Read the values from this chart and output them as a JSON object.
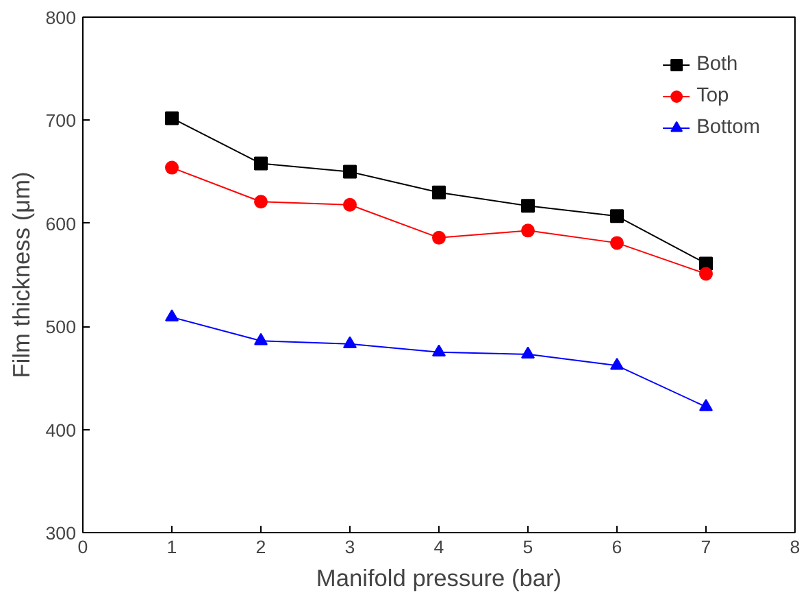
{
  "chart_data": {
    "type": "line",
    "xlabel": "Manifold pressure (bar)",
    "ylabel": "Film thickness (μm)",
    "x": [
      1,
      2,
      3,
      4,
      5,
      6,
      7
    ],
    "series": [
      {
        "name": "Both",
        "color": "#000000",
        "marker": "square",
        "values": [
          702,
          658,
          650,
          630,
          617,
          607,
          561
        ]
      },
      {
        "name": "Top",
        "color": "#ff0000",
        "marker": "circle",
        "values": [
          654,
          621,
          618,
          586,
          593,
          581,
          551
        ]
      },
      {
        "name": "Bottom",
        "color": "#0000ff",
        "marker": "triangle",
        "values": [
          509,
          486,
          483,
          475,
          473,
          462,
          422
        ]
      }
    ],
    "xlim": [
      0,
      8
    ],
    "xticks": [
      0,
      1,
      2,
      3,
      4,
      5,
      6,
      7,
      8
    ],
    "ylim": [
      300,
      800
    ],
    "yticks": [
      300,
      400,
      500,
      600,
      700,
      800
    ],
    "grid": false,
    "legend": "top right"
  }
}
